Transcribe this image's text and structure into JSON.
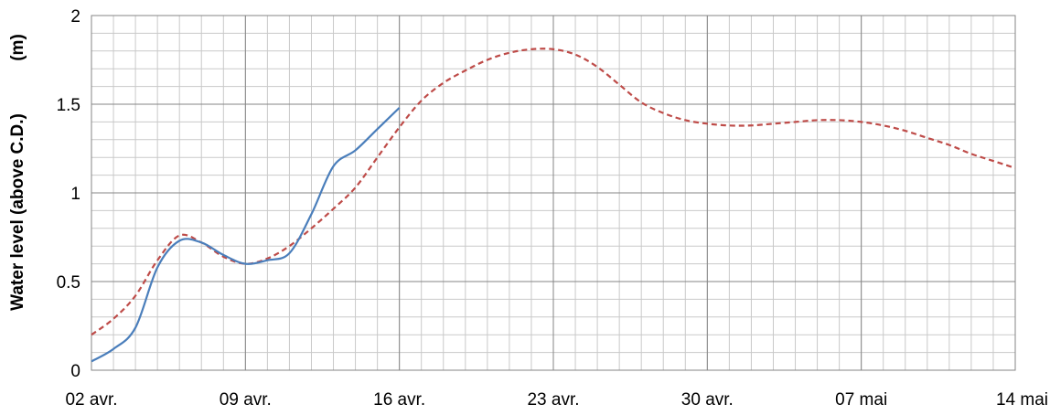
{
  "chart_data": {
    "type": "line",
    "title": "",
    "xlabel": "",
    "ylabel": "Water level (above C.D.)",
    "yunit": "(m)",
    "x_ticks": [
      "02 avr.",
      "09 avr.",
      "16 avr.",
      "23 avr.",
      "30 avr.",
      "07 mai",
      "14 mai"
    ],
    "x_tick_values": [
      "2023-04-02",
      "2023-04-09",
      "2023-04-16",
      "2023-04-23",
      "2023-04-30",
      "2023-05-07",
      "2023-05-14"
    ],
    "xlim": [
      "2023-04-02",
      "2023-05-14"
    ],
    "y_ticks": [
      "0",
      "0.5",
      "1",
      "1.5",
      "2"
    ],
    "ylim": [
      0,
      2
    ],
    "grid": true,
    "minor_grid": true,
    "legend": "none",
    "series": [
      {
        "style": "solid",
        "color": "#4a7ebb",
        "points": [
          [
            "2023-04-02",
            0.05
          ],
          [
            "2023-04-03",
            0.12
          ],
          [
            "2023-04-04",
            0.24
          ],
          [
            "2023-04-05",
            0.58
          ],
          [
            "2023-04-06",
            0.73
          ],
          [
            "2023-04-07",
            0.72
          ],
          [
            "2023-04-08",
            0.65
          ],
          [
            "2023-04-09",
            0.6
          ],
          [
            "2023-04-10",
            0.62
          ],
          [
            "2023-04-11",
            0.66
          ],
          [
            "2023-04-12",
            0.88
          ],
          [
            "2023-04-13",
            1.15
          ],
          [
            "2023-04-14",
            1.24
          ],
          [
            "2023-04-15",
            1.36
          ],
          [
            "2023-04-16",
            1.48
          ]
        ]
      },
      {
        "style": "dashed",
        "color": "#be4b48",
        "points": [
          [
            "2023-04-02",
            0.2
          ],
          [
            "2023-04-03",
            0.29
          ],
          [
            "2023-04-04",
            0.42
          ],
          [
            "2023-04-05",
            0.62
          ],
          [
            "2023-04-06",
            0.76
          ],
          [
            "2023-04-07",
            0.72
          ],
          [
            "2023-04-08",
            0.64
          ],
          [
            "2023-04-09",
            0.6
          ],
          [
            "2023-04-10",
            0.63
          ],
          [
            "2023-04-11",
            0.7
          ],
          [
            "2023-04-12",
            0.8
          ],
          [
            "2023-04-13",
            0.91
          ],
          [
            "2023-04-14",
            1.03
          ],
          [
            "2023-04-15",
            1.2
          ],
          [
            "2023-04-16",
            1.37
          ],
          [
            "2023-04-17",
            1.52
          ],
          [
            "2023-04-18",
            1.62
          ],
          [
            "2023-04-19",
            1.69
          ],
          [
            "2023-04-20",
            1.75
          ],
          [
            "2023-04-21",
            1.79
          ],
          [
            "2023-04-22",
            1.81
          ],
          [
            "2023-04-23",
            1.81
          ],
          [
            "2023-04-24",
            1.78
          ],
          [
            "2023-04-25",
            1.71
          ],
          [
            "2023-04-26",
            1.61
          ],
          [
            "2023-04-27",
            1.51
          ],
          [
            "2023-04-28",
            1.45
          ],
          [
            "2023-04-29",
            1.41
          ],
          [
            "2023-04-30",
            1.39
          ],
          [
            "2023-05-01",
            1.38
          ],
          [
            "2023-05-02",
            1.38
          ],
          [
            "2023-05-03",
            1.39
          ],
          [
            "2023-05-04",
            1.4
          ],
          [
            "2023-05-05",
            1.41
          ],
          [
            "2023-05-06",
            1.41
          ],
          [
            "2023-05-07",
            1.4
          ],
          [
            "2023-05-08",
            1.38
          ],
          [
            "2023-05-09",
            1.35
          ],
          [
            "2023-05-10",
            1.31
          ],
          [
            "2023-05-11",
            1.27
          ],
          [
            "2023-05-12",
            1.22
          ],
          [
            "2023-05-13",
            1.18
          ],
          [
            "2023-05-14",
            1.14
          ]
        ]
      }
    ]
  }
}
